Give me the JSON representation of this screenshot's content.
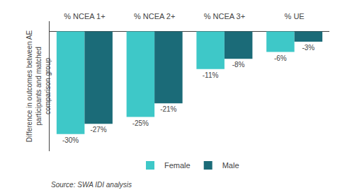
{
  "chart_data": {
    "type": "bar",
    "categories": [
      "% NCEA 1+",
      "% NCEA 2+",
      "% NCEA 3+",
      "% UE"
    ],
    "series": [
      {
        "name": "Female",
        "color": "#3ec8c8",
        "values": [
          -30,
          -25,
          -11,
          -6
        ],
        "value_labels": [
          "-30%",
          "-25%",
          "-11%",
          "-6%"
        ]
      },
      {
        "name": "Male",
        "color": "#1b6b78",
        "values": [
          -27,
          -21,
          -8,
          -3
        ],
        "value_labels": [
          "-27%",
          "-21%",
          "-8%",
          "-3%"
        ]
      }
    ],
    "ylabel": "Difference in outcomes between AE\nparticipants and matched\ncomparison group",
    "ylim": [
      -35,
      3
    ],
    "tick_labels": "x",
    "grid": false,
    "legend": "bottom",
    "data_labels": true,
    "annotations": [
      "Source: SWA IDI analysis"
    ]
  }
}
